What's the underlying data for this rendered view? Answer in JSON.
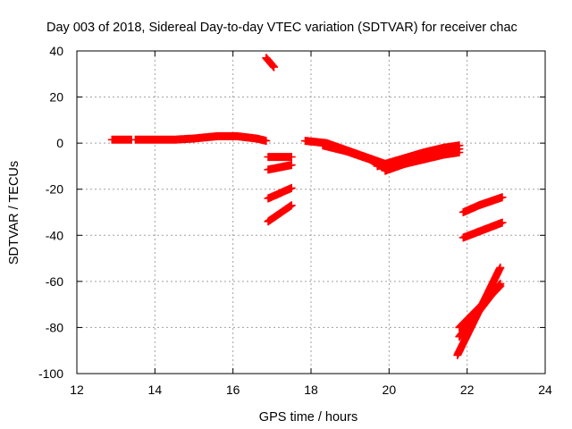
{
  "chart_data": {
    "type": "scatter",
    "title": "Day 003 of 2018, Sidereal Day-to-day VTEC variation (SDTVAR) for receiver chac",
    "xlabel": "GPS time / hours",
    "ylabel": "SDTVAR / TECUs",
    "xlim": [
      12,
      24
    ],
    "ylim": [
      -100,
      40
    ],
    "xticks": [
      12,
      14,
      16,
      18,
      20,
      22,
      24
    ],
    "yticks": [
      -100,
      -80,
      -60,
      -40,
      -20,
      0,
      20,
      40
    ],
    "grid": true,
    "series_color": "#ff0000",
    "marker": "plus",
    "segments": [
      {
        "x": [
          12.9,
          13.4
        ],
        "y": [
          1.5,
          1.5
        ]
      },
      {
        "x": [
          13.5,
          14.5,
          15.0,
          15.6,
          16.1,
          16.6,
          16.85
        ],
        "y": [
          1.5,
          1.5,
          2.0,
          3.0,
          3.0,
          2.0,
          1.0
        ]
      },
      {
        "x": [
          16.85,
          17.05
        ],
        "y": [
          37.0,
          33.0
        ]
      },
      {
        "x": [
          16.9,
          17.5
        ],
        "y": [
          -6.0,
          -6.0
        ]
      },
      {
        "x": [
          16.9,
          17.5
        ],
        "y": [
          -11.5,
          -9.5
        ]
      },
      {
        "x": [
          16.9,
          17.5
        ],
        "y": [
          -24.0,
          -19.5
        ]
      },
      {
        "x": [
          16.9,
          17.5
        ],
        "y": [
          -34.0,
          -27.0
        ]
      },
      {
        "x": [
          17.85,
          18.4,
          18.9,
          19.4,
          19.9,
          20.4,
          20.9,
          21.4,
          21.8
        ],
        "y": [
          1.0,
          0.0,
          -3.0,
          -6.0,
          -9.0,
          -9.0,
          -7.0,
          -5.0,
          -4.0
        ]
      },
      {
        "x": [
          18.3,
          18.9,
          19.5,
          19.9
        ],
        "y": [
          -1.0,
          -3.5,
          -7.0,
          -11.0
        ]
      },
      {
        "x": [
          19.9,
          20.4,
          20.9,
          21.4,
          21.8
        ],
        "y": [
          -12.0,
          -9.0,
          -6.5,
          -4.0,
          -2.5
        ]
      },
      {
        "x": [
          19.7,
          20.3,
          20.9,
          21.4,
          21.8
        ],
        "y": [
          -10.0,
          -7.0,
          -4.0,
          -2.0,
          -1.0
        ]
      },
      {
        "x": [
          21.9,
          22.3,
          22.9
        ],
        "y": [
          -30.0,
          -27.0,
          -23.5
        ]
      },
      {
        "x": [
          21.9,
          22.9
        ],
        "y": [
          -41.0,
          -34.5
        ]
      },
      {
        "x": [
          21.75,
          22.85
        ],
        "y": [
          -92.0,
          -54.0
        ]
      },
      {
        "x": [
          21.8,
          22.85
        ],
        "y": [
          -84.0,
          -61.0
        ]
      },
      {
        "x": [
          21.8,
          22.85
        ],
        "y": [
          -80.0,
          -62.0
        ]
      }
    ]
  }
}
